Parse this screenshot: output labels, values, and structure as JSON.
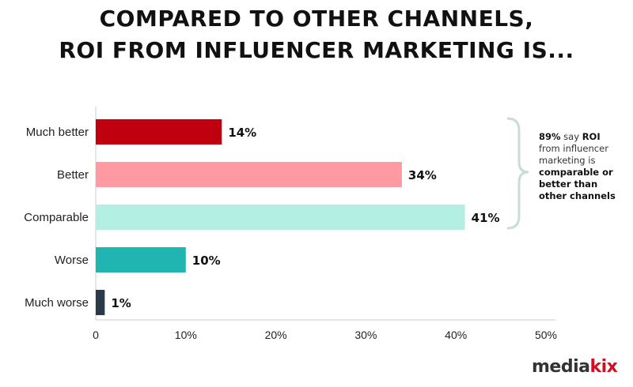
{
  "chart_data": {
    "type": "bar",
    "orientation": "horizontal",
    "title": "COMPARED TO OTHER CHANNELS, ROI FROM INFLUENCER MARKETING IS...",
    "title_lines": [
      "COMPARED TO OTHER CHANNELS,",
      "ROI FROM INFLUENCER MARKETING IS..."
    ],
    "categories": [
      "Much better",
      "Better",
      "Comparable",
      "Worse",
      "Much worse"
    ],
    "values": [
      14,
      34,
      41,
      10,
      1
    ],
    "data_labels": [
      "14%",
      "34%",
      "41%",
      "10%",
      "1%"
    ],
    "colors": [
      "#c1000f",
      "#ff9aa2",
      "#b3efe3",
      "#20b5b0",
      "#2a3a4a"
    ],
    "xlim": [
      0,
      50
    ],
    "xticks": [
      0,
      10,
      20,
      30,
      40,
      50
    ],
    "xtick_labels": [
      "0",
      "10%",
      "20%",
      "30%",
      "40%",
      "50%"
    ],
    "grid": false,
    "annotation": {
      "bracket_color": "#c9dcd8",
      "parts": [
        {
          "text": "89%",
          "bold": true
        },
        {
          "text": " say ",
          "bold": false
        },
        {
          "text": "ROI",
          "bold": true
        },
        {
          "text": " from influencer marketing is ",
          "bold": false
        },
        {
          "text": "comparable or better than other channels",
          "bold": true
        }
      ]
    }
  },
  "logo": {
    "text_a": "media",
    "text_b": "kix",
    "color_a": "#333333",
    "color_b": "#d01020"
  }
}
